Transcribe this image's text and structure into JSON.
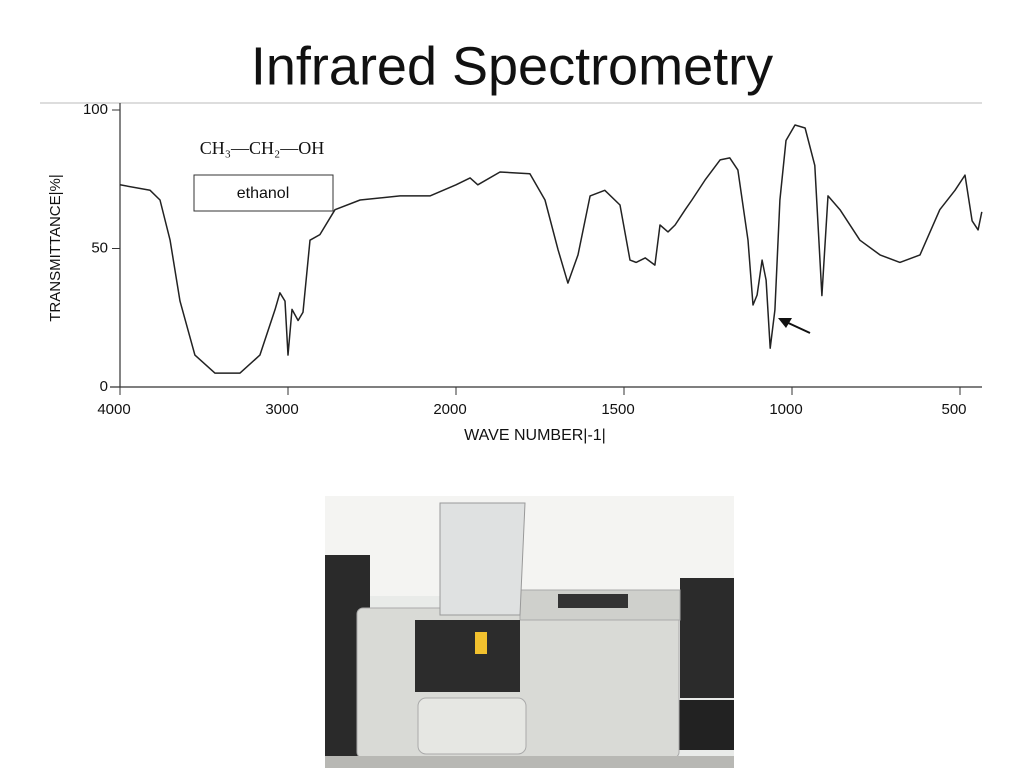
{
  "chart_data": {
    "type": "line",
    "title": "Infrared Spectrometry",
    "x_label": "WAVE NUMBER|-1|",
    "y_label": "TRANSMITTANCE|%|",
    "annotations": [
      "CH₃—CH₂—OH",
      "ethanol"
    ],
    "color": "#222222",
    "xlim": [
      4000,
      435
    ],
    "ylim": [
      0,
      100
    ],
    "xticks": [
      4000,
      3000,
      2000,
      1500,
      1000,
      500
    ],
    "yticks": [
      0,
      50,
      100
    ],
    "x": [
      4000,
      3821,
      3762,
      3702,
      3643,
      3554,
      3435,
      3286,
      3167,
      3077,
      3048,
      3018,
      3000,
      2976,
      2940,
      2911,
      2869,
      2810,
      2720,
      2571,
      2333,
      2155,
      2000,
      1958,
      1935,
      1869,
      1780,
      1735,
      1696,
      1667,
      1637,
      1601,
      1557,
      1512,
      1482,
      1464,
      1437,
      1408,
      1393,
      1369,
      1348,
      1318,
      1298,
      1259,
      1214,
      1185,
      1161,
      1131,
      1116,
      1104,
      1089,
      1077,
      1065,
      1051,
      1036,
      1018,
      991,
      961,
      932,
      911,
      893,
      857,
      798,
      738,
      679,
      619,
      560,
      515,
      485,
      464,
      446,
      435
    ],
    "values": [
      73,
      71,
      67.5,
      53,
      31,
      11.5,
      5,
      5,
      11.5,
      28,
      34,
      31,
      11.5,
      28,
      24,
      27,
      53,
      55,
      64,
      67.5,
      69,
      69,
      73,
      75.5,
      73,
      77.6,
      77,
      67.5,
      49.5,
      37.5,
      47.7,
      69,
      71,
      65.7,
      45.8,
      45,
      46.6,
      44,
      58.5,
      56,
      58.5,
      64,
      67.5,
      74.7,
      82,
      82.7,
      78.3,
      53,
      29.6,
      33.2,
      45.8,
      38.6,
      14,
      27.8,
      67.5,
      89,
      94.6,
      93.5,
      80,
      33,
      69,
      64,
      53,
      47.7,
      45,
      47.7,
      64,
      71,
      76.5,
      60,
      56.7,
      63.2
    ]
  }
}
